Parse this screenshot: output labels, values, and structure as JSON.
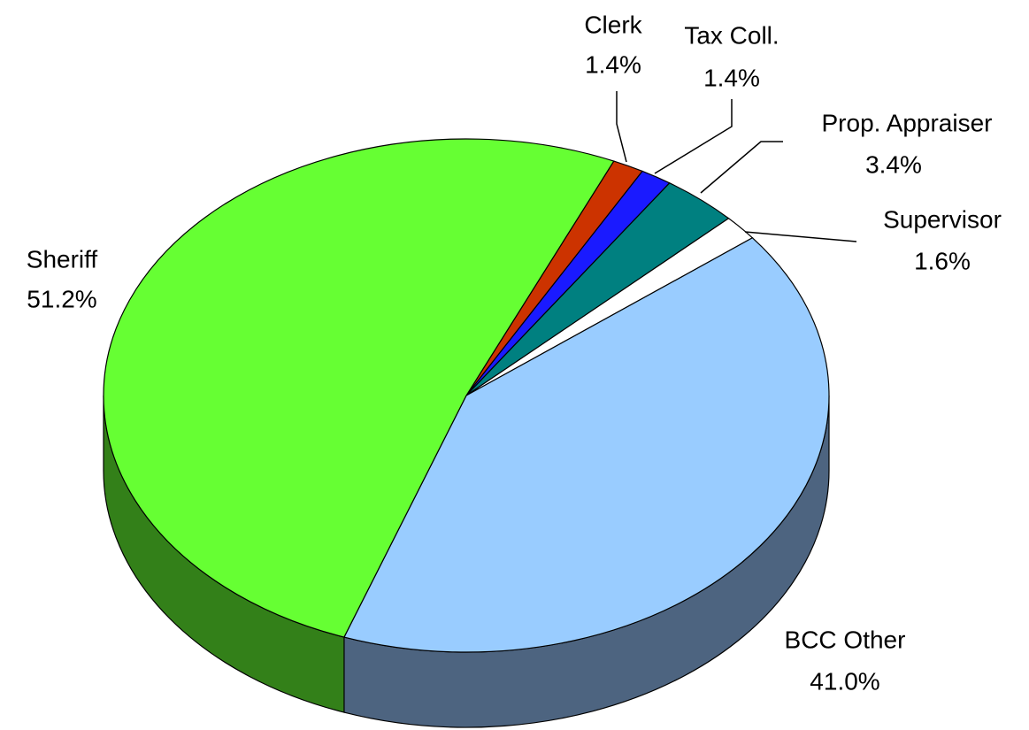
{
  "chart_data": {
    "type": "pie3d",
    "categories": [
      "Clerk",
      "Tax Coll.",
      "Prop. Appraiser",
      "Supervisor",
      "BCC Other",
      "Sheriff"
    ],
    "values": [
      1.4,
      1.4,
      3.4,
      1.6,
      41.0,
      51.2
    ],
    "value_labels": [
      "1.4%",
      "1.4%",
      "3.4%",
      "1.6%",
      "41.0%",
      "51.2%"
    ],
    "colors": [
      "#cc3300",
      "#1a1aff",
      "#008080",
      "#ffffff",
      "#99ccff",
      "#66ff33"
    ]
  }
}
